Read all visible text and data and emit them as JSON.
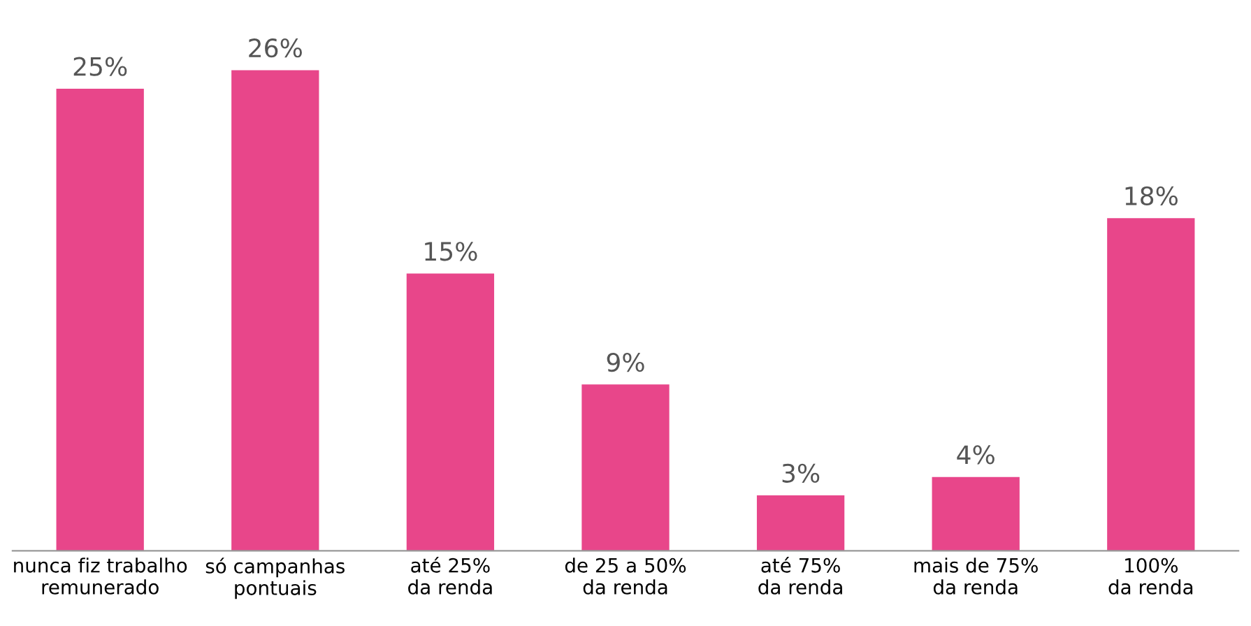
{
  "chart_data": {
    "type": "bar",
    "categories": [
      "nunca fiz trabalho\nremunerado",
      "só campanhas\npontuais",
      "até 25%\nda renda",
      "de 25 a 50%\nda renda",
      "até 75%\nda renda",
      "mais de 75%\nda renda",
      "100%\nda renda"
    ],
    "values": [
      25,
      26,
      15,
      9,
      3,
      4,
      18
    ],
    "value_labels": [
      "25%",
      "26%",
      "15%",
      "9%",
      "3%",
      "4%",
      "18%"
    ],
    "color": "#e8468a",
    "grid": false,
    "tick_labels": "x"
  }
}
